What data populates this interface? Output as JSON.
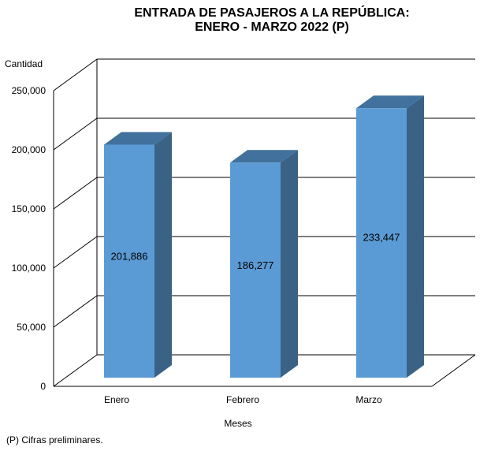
{
  "chart_data": {
    "type": "bar",
    "title_lines": [
      "ENTRADA DE PASAJEROS A LA REPÚBLICA:",
      "ENERO - MARZO 2022 (P)"
    ],
    "ylabel": "Cantidad",
    "xlabel": "Meses",
    "categories": [
      "Enero",
      "Febrero",
      "Marzo"
    ],
    "values": [
      201886,
      186277,
      233447
    ],
    "data_labels": [
      "201,886",
      "186,277",
      "233,447"
    ],
    "ylim": [
      0,
      250000
    ],
    "y_ticks": [
      0,
      50000,
      100000,
      150000,
      200000,
      250000
    ],
    "y_tick_labels": [
      "0",
      "50,000",
      "100,000",
      "150,000",
      "200,000",
      "250,000"
    ],
    "grid": true,
    "style": "3d-column",
    "legend": "none",
    "colors": {
      "bar_front": "#5b9bd5",
      "bar_side": "#3a6285",
      "bar_top": "#41719c",
      "grid": "#000000"
    }
  },
  "footnote": "(P) Cifras  preliminares."
}
